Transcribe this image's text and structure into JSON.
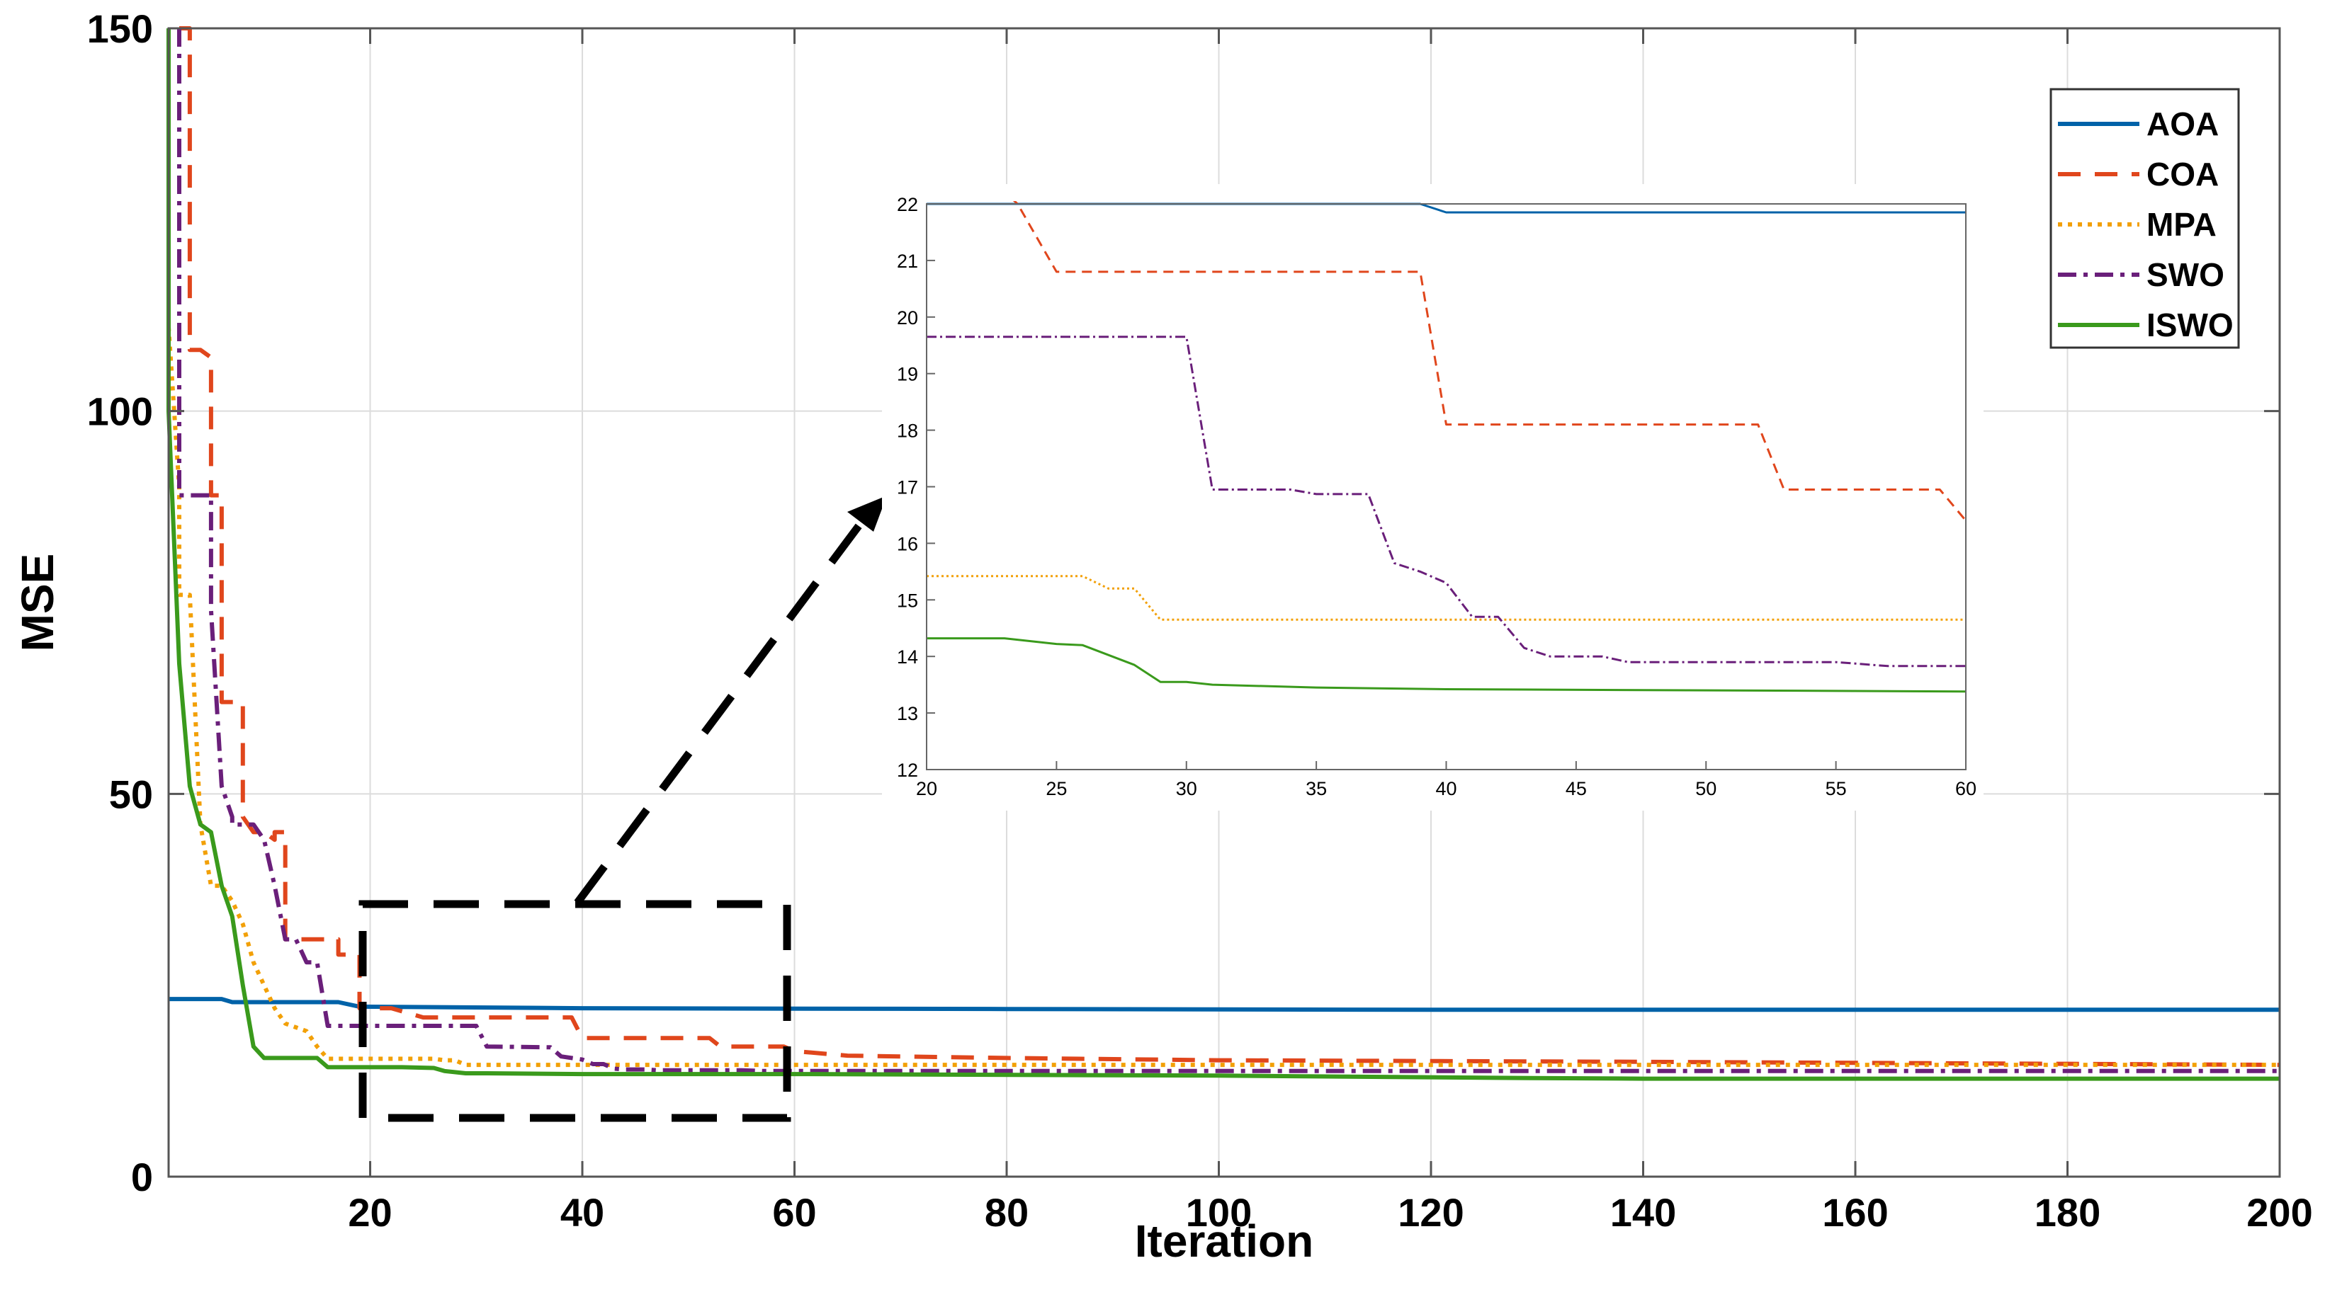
{
  "chart_data": [
    {
      "id": "main",
      "type": "line",
      "title": "",
      "xlabel": "Iteration",
      "ylabel": "MSE",
      "xlim": [
        1,
        200
      ],
      "ylim": [
        0,
        150
      ],
      "xticks": [
        20,
        40,
        60,
        80,
        100,
        120,
        140,
        160,
        180,
        200
      ],
      "yticks": [
        0,
        50,
        100,
        150
      ],
      "grid": true,
      "legend_position": "top-right",
      "series": [
        {
          "name": "AOA",
          "color": "#0062A8",
          "dash": "solid",
          "points": [
            [
              1,
              23.2
            ],
            [
              6,
              23.2
            ],
            [
              7,
              22.8
            ],
            [
              17,
              22.8
            ],
            [
              19,
              22.2
            ],
            [
              40,
              22.0
            ],
            [
              80,
              21.9
            ],
            [
              120,
              21.8
            ],
            [
              200,
              21.8
            ]
          ]
        },
        {
          "name": "COA",
          "color": "#E0461C",
          "dash": "dashed",
          "points": [
            [
              2,
              150
            ],
            [
              3,
              150
            ],
            [
              3,
              108
            ],
            [
              4,
              108
            ],
            [
              5,
              107
            ],
            [
              5,
              89
            ],
            [
              6,
              89
            ],
            [
              6,
              62
            ],
            [
              7,
              62
            ],
            [
              8,
              62
            ],
            [
              8,
              47
            ],
            [
              9,
              45
            ],
            [
              10,
              45
            ],
            [
              11,
              44
            ],
            [
              11,
              45
            ],
            [
              12,
              45
            ],
            [
              12,
              31
            ],
            [
              17,
              31
            ],
            [
              17,
              29
            ],
            [
              19,
              29
            ],
            [
              19,
              22
            ],
            [
              22,
              22
            ],
            [
              25,
              20.8
            ],
            [
              39,
              20.8
            ],
            [
              40,
              18.1
            ],
            [
              52,
              18.1
            ],
            [
              53,
              17
            ],
            [
              59,
              17
            ],
            [
              60,
              16.4
            ],
            [
              65,
              15.8
            ],
            [
              80,
              15.5
            ],
            [
              100,
              15.2
            ],
            [
              140,
              15.0
            ],
            [
              200,
              14.6
            ]
          ]
        },
        {
          "name": "MPA",
          "color": "#F2A007",
          "dash": "dotted",
          "points": [
            [
              1,
              111
            ],
            [
              2,
              90
            ],
            [
              2,
              76
            ],
            [
              3,
              76
            ],
            [
              4,
              46
            ],
            [
              5,
              38
            ],
            [
              6,
              38
            ],
            [
              7,
              36
            ],
            [
              8,
              33
            ],
            [
              9,
              28
            ],
            [
              10,
              25
            ],
            [
              11,
              22
            ],
            [
              12,
              20
            ],
            [
              13,
              19.5
            ],
            [
              14,
              19
            ],
            [
              15,
              17
            ],
            [
              16,
              15.4
            ],
            [
              26,
              15.4
            ],
            [
              27,
              15.2
            ],
            [
              28,
              15.2
            ],
            [
              29,
              14.6
            ],
            [
              60,
              14.6
            ],
            [
              200,
              14.6
            ]
          ]
        },
        {
          "name": "SWO",
          "color": "#6A1F7A",
          "dash": "dashdot",
          "points": [
            [
              2,
              150
            ],
            [
              2,
              89
            ],
            [
              5,
              89
            ],
            [
              5,
              74
            ],
            [
              6,
              51
            ],
            [
              7,
              47
            ],
            [
              7,
              46
            ],
            [
              9,
              46
            ],
            [
              10,
              44
            ],
            [
              11,
              38
            ],
            [
              12,
              31
            ],
            [
              13,
              31
            ],
            [
              14,
              28
            ],
            [
              15,
              28
            ],
            [
              16,
              19.7
            ],
            [
              30,
              19.7
            ],
            [
              31,
              17
            ],
            [
              37,
              16.9
            ],
            [
              38,
              15.7
            ],
            [
              40,
              15.3
            ],
            [
              41,
              14.7
            ],
            [
              42,
              14.7
            ],
            [
              43,
              14.1
            ],
            [
              44,
              14
            ],
            [
              46,
              14
            ],
            [
              47,
              13.9
            ],
            [
              55,
              13.9
            ],
            [
              57,
              13.8
            ],
            [
              60,
              13.8
            ],
            [
              200,
              13.8
            ]
          ]
        },
        {
          "name": "ISWO",
          "color": "#3A9A1C",
          "dash": "solid",
          "points": [
            [
              1,
              150
            ],
            [
              1,
              100
            ],
            [
              2,
              67
            ],
            [
              3,
              51
            ],
            [
              4,
              46
            ],
            [
              5,
              45
            ],
            [
              6,
              38
            ],
            [
              7,
              34
            ],
            [
              8,
              25
            ],
            [
              9,
              17
            ],
            [
              10,
              15.5
            ],
            [
              15,
              15.5
            ],
            [
              16,
              14.3
            ],
            [
              23,
              14.3
            ],
            [
              26,
              14.2
            ],
            [
              27,
              13.8
            ],
            [
              29,
              13.5
            ],
            [
              31,
              13.5
            ],
            [
              40,
              13.4
            ],
            [
              60,
              13.4
            ],
            [
              100,
              13.2
            ],
            [
              127,
              12.9
            ],
            [
              140,
              12.8
            ],
            [
              200,
              12.8
            ]
          ]
        }
      ]
    },
    {
      "id": "inset",
      "type": "line",
      "title": "",
      "xlabel": "",
      "ylabel": "",
      "xlim": [
        20,
        60
      ],
      "ylim": [
        12,
        22
      ],
      "xticks": [
        20,
        25,
        30,
        35,
        40,
        45,
        50,
        55,
        60
      ],
      "yticks": [
        12,
        13,
        14,
        15,
        16,
        17,
        18,
        19,
        20,
        21,
        22
      ],
      "grid": false,
      "series": [
        {
          "name": "AOA",
          "color": "#0062A8",
          "dash": "solid",
          "points": [
            [
              20,
              22.0
            ],
            [
              39,
              22.0
            ],
            [
              40,
              21.85
            ],
            [
              60,
              21.85
            ]
          ]
        },
        {
          "name": "COA",
          "color": "#E0461C",
          "dash": "dashed",
          "points": [
            [
              20,
              23.5
            ],
            [
              23.5,
              22.0
            ],
            [
              25,
              20.8
            ],
            [
              39,
              20.8
            ],
            [
              40,
              18.1
            ],
            [
              52,
              18.1
            ],
            [
              53,
              16.95
            ],
            [
              59,
              16.95
            ],
            [
              60,
              16.4
            ]
          ]
        },
        {
          "name": "MPA",
          "color": "#F2A007",
          "dash": "dotted",
          "points": [
            [
              20,
              15.42
            ],
            [
              26,
              15.42
            ],
            [
              27,
              15.2
            ],
            [
              28,
              15.2
            ],
            [
              29,
              14.65
            ],
            [
              60,
              14.65
            ]
          ]
        },
        {
          "name": "SWO",
          "color": "#6A1F7A",
          "dash": "dashdot",
          "points": [
            [
              20,
              19.65
            ],
            [
              30,
              19.65
            ],
            [
              31,
              16.95
            ],
            [
              34,
              16.95
            ],
            [
              35,
              16.87
            ],
            [
              37,
              16.87
            ],
            [
              38,
              15.65
            ],
            [
              39,
              15.5
            ],
            [
              40,
              15.3
            ],
            [
              41,
              14.7
            ],
            [
              42,
              14.7
            ],
            [
              43,
              14.15
            ],
            [
              44,
              14.0
            ],
            [
              46,
              14.0
            ],
            [
              47,
              13.9
            ],
            [
              55,
              13.9
            ],
            [
              57,
              13.83
            ],
            [
              60,
              13.83
            ]
          ]
        },
        {
          "name": "ISWO",
          "color": "#3A9A1C",
          "dash": "solid",
          "points": [
            [
              20,
              14.32
            ],
            [
              23,
              14.32
            ],
            [
              25,
              14.22
            ],
            [
              26,
              14.2
            ],
            [
              28,
              13.85
            ],
            [
              29,
              13.55
            ],
            [
              30,
              13.55
            ],
            [
              31,
              13.5
            ],
            [
              35,
              13.45
            ],
            [
              40,
              13.42
            ],
            [
              60,
              13.38
            ]
          ]
        }
      ]
    }
  ]
}
